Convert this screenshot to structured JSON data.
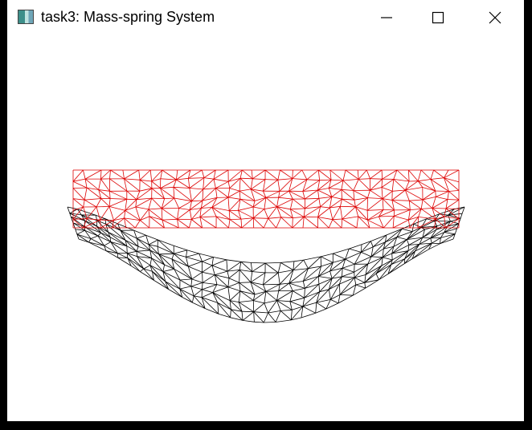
{
  "window": {
    "title": "task3: Mass-spring System",
    "icon": "app-window-icon",
    "controls": [
      "minimize-icon",
      "maximize-icon",
      "close-icon"
    ]
  },
  "canvas": {
    "background": "#ffffff",
    "rest_mesh_color": "#dd0000",
    "deformed_mesh_color": "#000000"
  }
}
